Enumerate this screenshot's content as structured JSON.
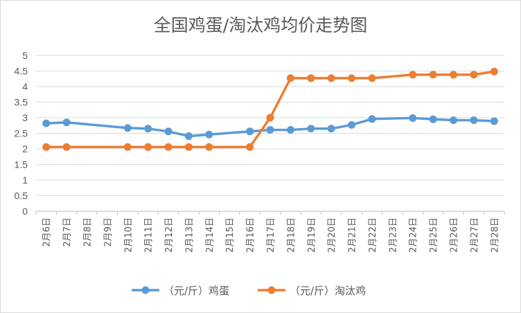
{
  "chart_data": {
    "type": "line",
    "title": "全国鸡蛋/淘汰鸡均价走势图",
    "categories": [
      "2月6日",
      "2月7日",
      "2月8日",
      "2月9日",
      "2月10日",
      "2月11日",
      "2月12日",
      "2月13日",
      "2月14日",
      "2月15日",
      "2月16日",
      "2月17日",
      "2月18日",
      "2月19日",
      "2月20日",
      "2月21日",
      "2月22日",
      "2月23日",
      "2月24日",
      "2月25日",
      "2月26日",
      "2月27日",
      "2月28日"
    ],
    "series": [
      {
        "name": "（元/斤）鸡蛋",
        "color": "#5b9bd5",
        "values": [
          2.82,
          2.85,
          null,
          null,
          2.67,
          2.65,
          2.56,
          2.41,
          2.46,
          null,
          2.56,
          2.61,
          2.61,
          2.65,
          2.65,
          2.77,
          2.96,
          null,
          2.99,
          2.95,
          2.92,
          2.92,
          2.89
        ]
      },
      {
        "name": "（元/斤）淘汰鸡",
        "color": "#ed7d31",
        "values": [
          2.06,
          2.06,
          null,
          null,
          2.06,
          2.06,
          2.06,
          2.06,
          2.06,
          null,
          2.06,
          3.0,
          4.27,
          4.27,
          4.27,
          4.27,
          4.27,
          null,
          4.38,
          4.38,
          4.38,
          4.38,
          4.48
        ]
      }
    ],
    "yticks": [
      "0",
      "0.5",
      "1",
      "1.5",
      "2",
      "2.5",
      "3",
      "3.5",
      "4",
      "4.5",
      "5"
    ],
    "ylim": [
      0,
      5
    ],
    "xlabel": "",
    "ylabel": "",
    "grid": true,
    "legend_position": "bottom"
  }
}
